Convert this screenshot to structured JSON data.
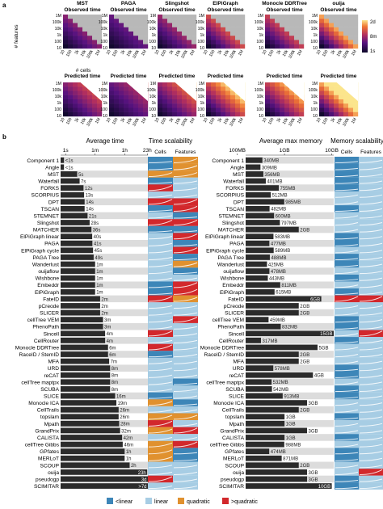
{
  "panel_a": {
    "label": "a",
    "methods": [
      "MST",
      "PAGA",
      "Slingshot",
      "ElPiGraph",
      "Monocle DDRTree",
      "ouija"
    ],
    "observed_suffix": "Observed time",
    "predicted_label": "Predicted time",
    "y_axis_label": "# features",
    "x_axis_label": "# cells",
    "y_ticks": [
      "1M",
      "100k",
      "10k",
      "1k",
      "100",
      "10"
    ],
    "x_ticks": [
      "10",
      "100",
      "1k",
      "10k",
      "100k",
      "1M"
    ],
    "colorbar_ticks": [
      "2d",
      "8m",
      "1s"
    ],
    "timescale": [
      0.45,
      0.35,
      0.5,
      0.7,
      0.65,
      0.95
    ]
  },
  "panel_b": {
    "label": "b",
    "time": {
      "title": "Average time",
      "axis_ticks": [
        "1s",
        "1m",
        "1h",
        "23h"
      ],
      "scal_title": "Time scalability",
      "scal_cols": [
        "Cells",
        "Features"
      ]
    },
    "memory": {
      "title": "Average max memory",
      "axis_ticks": [
        "100MB",
        "1GB",
        "10GB"
      ],
      "scal_title": "Memory scalability",
      "scal_cols": [
        "Cells",
        "Features"
      ]
    }
  },
  "legend": {
    "items": [
      {
        "label": "<linear",
        "color": "#3d86b8"
      },
      {
        "label": "linear",
        "color": "#a7cde4"
      },
      {
        "label": "quadratic",
        "color": "#e0912f"
      },
      {
        "label": ">quadratic",
        "color": "#d2282c"
      }
    ]
  },
  "chart_data": [
    {
      "type": "bar",
      "title": "Average time",
      "unit": "seconds",
      "categories": [
        "Component 1",
        "Angle",
        "MST",
        "Waterfall",
        "FORKS",
        "SCORPIUS",
        "DPT",
        "TSCAN",
        "STEMNET",
        "Slingshot",
        "MATCHER",
        "ElPiGraph linear",
        "PAGA",
        "ElPiGraph cycle",
        "PAGA Tree",
        "Wanderlust",
        "ouijaflow",
        "Wishbone",
        "Embeddr",
        "ElPiGraph",
        "FateID",
        "pCreode",
        "SLICER",
        "cellTree VEM",
        "PhenoPath",
        "Sincell",
        "CellRouter",
        "Monocle DDRTree",
        "RaceID / StemID",
        "MFA",
        "URD",
        "reCAT",
        "cellTree maptpx",
        "SCUBA",
        "SLICE",
        "Monocle ICA",
        "CellTrails",
        "topslam",
        "Mpath",
        "GrandPrix",
        "CALISTA",
        "cellTree Gibbs",
        "GPfates",
        "MERLoT",
        "SCOUP",
        "ouija",
        "pseudogp",
        "SCIMITAR"
      ],
      "value_labels": [
        "<1s",
        "<1s",
        "5s",
        "7s",
        "12s",
        "13s",
        "14s",
        "14s",
        "21s",
        "28s",
        "36s",
        "40s",
        "41s",
        "45s",
        "49s",
        "1m",
        "1m",
        "1m",
        "1m",
        "1m",
        "2m",
        "2m",
        "2m",
        "3m",
        "3m",
        "4m",
        "4m",
        "6m",
        "6m",
        "7m",
        "8m",
        "8m",
        "8m",
        "8m",
        "16m",
        "19m",
        "26m",
        "26m",
        "28m",
        "32m",
        "42m",
        "46m",
        "1h",
        "1h",
        "2h",
        "23h",
        "3d",
        ">7d"
      ],
      "values": [
        0.8,
        0.8,
        5,
        7,
        12,
        13,
        14,
        14,
        21,
        28,
        36,
        40,
        41,
        45,
        49,
        60,
        60,
        60,
        60,
        60,
        120,
        120,
        120,
        180,
        180,
        240,
        240,
        360,
        360,
        420,
        480,
        480,
        480,
        480,
        960,
        1140,
        1560,
        1560,
        1680,
        1920,
        2520,
        2760,
        3600,
        3600,
        7200,
        82800,
        259200,
        604800
      ],
      "scale": "log",
      "xlim_seconds": [
        0.5,
        90000
      ],
      "axis_ticks": [
        "1s",
        "1m",
        "1h",
        "23h"
      ],
      "scalability_cells": [
        0,
        0,
        2,
        0,
        3,
        1,
        3,
        0,
        1,
        3,
        0,
        1,
        1,
        1,
        1,
        1,
        1,
        1,
        0,
        0,
        3,
        1,
        1,
        1,
        1,
        3,
        1,
        3,
        0,
        1,
        1,
        1,
        1,
        1,
        0,
        2,
        1,
        2,
        3,
        2,
        1,
        2,
        2,
        2,
        1,
        1,
        3,
        1
      ],
      "scalability_features": [
        2,
        2,
        2,
        1,
        1,
        1,
        3,
        3,
        0,
        3,
        0,
        3,
        0,
        3,
        0,
        2,
        0,
        1,
        3,
        3,
        2,
        1,
        1,
        3,
        1,
        1,
        1,
        1,
        1,
        1,
        1,
        1,
        0,
        1,
        1,
        0,
        1,
        2,
        1,
        3,
        1,
        3,
        0,
        0,
        1,
        1,
        1,
        1
      ]
    },
    {
      "type": "bar",
      "title": "Average max memory",
      "unit": "MB",
      "categories": [
        "Component 1",
        "Angle",
        "MST",
        "Waterfall",
        "FORKS",
        "SCORPIUS",
        "DPT",
        "TSCAN",
        "STEMNET",
        "Slingshot",
        "MATCHER",
        "ElPiGraph linear",
        "PAGA",
        "ElPiGraph cycle",
        "PAGA Tree",
        "Wanderlust",
        "ouijaflow",
        "Wishbone",
        "Embeddr",
        "ElPiGraph",
        "FateID",
        "pCreode",
        "SLICER",
        "cellTree VEM",
        "PhenoPath",
        "Sincell",
        "CellRouter",
        "Monocle DDRTree",
        "RaceID / StemID",
        "MFA",
        "URD",
        "reCAT",
        "cellTree maptpx",
        "SCUBA",
        "SLICE",
        "Monocle ICA",
        "CellTrails",
        "topslam",
        "Mpath",
        "GrandPrix",
        "CALISTA",
        "cellTree Gibbs",
        "GPfates",
        "MERLoT",
        "SCOUP",
        "ouija",
        "pseudogp",
        "SCIMITAR"
      ],
      "value_labels": [
        "340MB",
        "309MB",
        "356MB",
        "401MB",
        "755MB",
        "512MB",
        "985MB",
        "482MB",
        "600MB",
        "797MB",
        "2GB",
        "583MB",
        "477MB",
        "589MB",
        "488MB",
        "425MB",
        "478MB",
        "443MB",
        "811MB",
        "615MB",
        "6GB",
        "2GB",
        "2GB",
        "459MB",
        "832MB",
        "15GB",
        "317MB",
        "5GB",
        "2GB",
        "2GB",
        "578MB",
        "4GB",
        "532MB",
        "542MB",
        "913MB",
        "3GB",
        "2GB",
        "1GB",
        "1GB",
        "3GB",
        "1GB",
        "988MB",
        "474MB",
        "871MB",
        "2GB",
        "3GB",
        "3GB",
        "10GB"
      ],
      "values": [
        340,
        309,
        356,
        401,
        755,
        512,
        985,
        482,
        600,
        797,
        2000,
        583,
        477,
        589,
        488,
        425,
        478,
        443,
        811,
        615,
        6000,
        2000,
        2000,
        459,
        832,
        15000,
        317,
        5000,
        2000,
        2000,
        578,
        4000,
        532,
        542,
        913,
        3000,
        2000,
        1000,
        1000,
        3000,
        1000,
        988,
        474,
        871,
        2000,
        3000,
        3000,
        10000
      ],
      "scale": "log",
      "xlim_mb": [
        150,
        11000
      ],
      "axis_ticks": [
        "100MB",
        "1GB",
        "10GB"
      ],
      "scalability_cells": [
        0,
        0,
        0,
        0,
        0,
        1,
        1,
        0,
        1,
        1,
        1,
        0,
        0,
        1,
        0,
        0,
        1,
        0,
        1,
        0,
        3,
        1,
        1,
        0,
        0,
        1,
        0,
        1,
        1,
        1,
        0,
        0,
        1,
        0,
        0,
        1,
        1,
        0,
        1,
        1,
        0,
        1,
        0,
        0,
        1,
        1,
        0,
        0
      ],
      "scalability_features": [
        1,
        1,
        1,
        1,
        1,
        1,
        1,
        1,
        1,
        1,
        1,
        1,
        1,
        1,
        1,
        1,
        1,
        1,
        1,
        1,
        3,
        1,
        1,
        1,
        1,
        3,
        1,
        1,
        1,
        1,
        1,
        1,
        1,
        1,
        1,
        1,
        1,
        1,
        1,
        1,
        1,
        1,
        1,
        1,
        1,
        3,
        1,
        1
      ]
    }
  ]
}
